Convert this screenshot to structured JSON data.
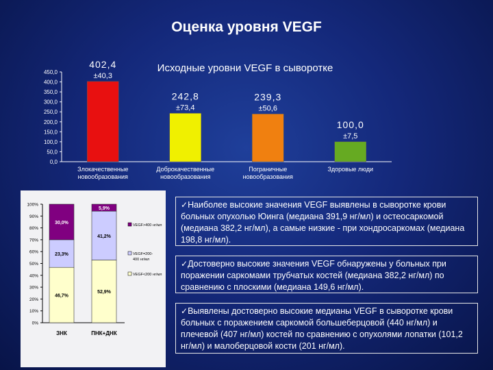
{
  "title": "Оценка уровня VEGF",
  "chart_data": [
    {
      "type": "bar",
      "title": "Исходные уровни VEGF в сыворотке",
      "categories": [
        [
          "Злокачественные",
          "новообразования"
        ],
        [
          "Доброкачественные",
          "новообразования"
        ],
        [
          "Пограничные",
          "новообразования"
        ],
        [
          "Здоровые люди"
        ]
      ],
      "values": [
        402.4,
        242.8,
        239.3,
        100.0
      ],
      "value_labels": [
        "402,4",
        "242,8",
        "239,3",
        "100,0"
      ],
      "error_labels": [
        "±40,3",
        "±73,4",
        "±50,6",
        "±7,5"
      ],
      "bar_colors": [
        "#e81010",
        "#f0f000",
        "#f08010",
        "#66aa22"
      ],
      "ylim": [
        0,
        450
      ],
      "yticks": [
        "0,0",
        "50,0",
        "100,0",
        "150,0",
        "200,0",
        "250,0",
        "300,0",
        "350,0",
        "400,0",
        "450,0"
      ],
      "grid": false
    },
    {
      "type": "bar",
      "stacked": true,
      "percent": true,
      "categories": [
        "ЗНК",
        "ПНК+ДНК"
      ],
      "series": [
        {
          "name": "VEGF<200 нг/мл",
          "color": "#ffffcc",
          "values": [
            46.7,
            52.9
          ],
          "labels": [
            "46,7%",
            "52,9%"
          ]
        },
        {
          "name": "VEGF=200-400 нг/мл",
          "color": "#ccccff",
          "values": [
            23.3,
            41.2
          ],
          "labels": [
            "23,3%",
            "41,2%"
          ]
        },
        {
          "name": "VEGF>400 нг/мл",
          "color": "#800080",
          "values": [
            30.0,
            5.9
          ],
          "labels": [
            "30,0%",
            "5,9%"
          ]
        }
      ],
      "legend_labels": [
        "VEGF>400 нг/мл",
        "VEGF=200-400 нг/мл",
        "VEGF<200 нг/мл"
      ],
      "yticks": [
        "0%",
        "10%",
        "20%",
        "30%",
        "40%",
        "50%",
        "60%",
        "70%",
        "80%",
        "90%",
        "100%"
      ],
      "legend_position": "right"
    }
  ],
  "notes": [
    "Наиболее высокие значения VEGF выявлены в сыворотке крови больных опухолью Юинга (медиана 391,9 нг/мл) и остеосаркомой (медиана 382,2 нг/мл), а самые низкие - при хондросаркомах (медиана 198,8 нг/мл).",
    "Достоверно высокие значения VEGF обнаружены у больных при поражении саркомами трубчатых костей (медиана 382,2 нг/мл) по сравнению с плоскими (медиана 149,6 нг/мл).",
    "Выявлены достоверно высокие медианы VEGF в сыворотке крови  больных с поражением саркомой большеберцовой (440 нг/мл) и плечевой (407 нг/мл) костей по сравнению с опухолями лопатки (101,2 нг/мл) и малоберцовой кости (201 нг/мл)."
  ],
  "check_glyph": "✓"
}
